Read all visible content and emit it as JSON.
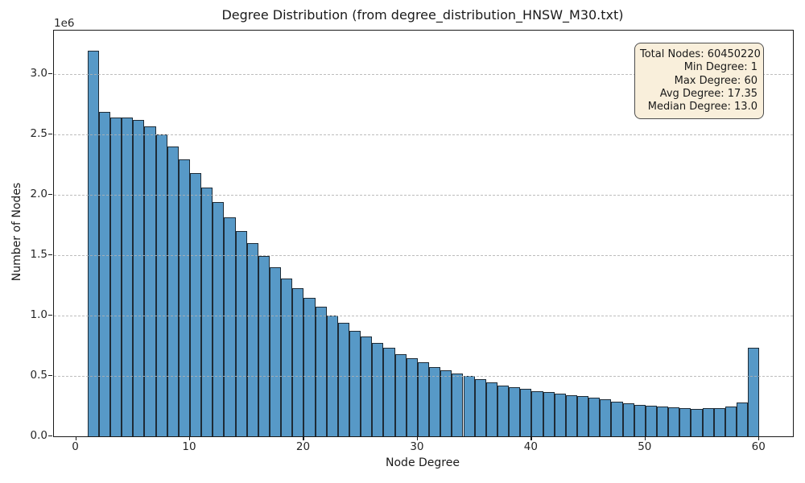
{
  "figure": {
    "title": "Degree Distribution (from degree_distribution_HNSW_M30.txt)",
    "xlabel": "Node Degree",
    "ylabel": "Number of Nodes",
    "y_offset_text": "1e6"
  },
  "stats_box": {
    "lines": [
      "Total Nodes: 60450220",
      "Min Degree: 1",
      "Max Degree: 60",
      "Avg Degree: 17.35",
      "Median Degree: 13.0"
    ]
  },
  "chart_data": {
    "type": "bar",
    "title": "Degree Distribution (from degree_distribution_HNSW_M30.txt)",
    "xlabel": "Node Degree",
    "ylabel": "Number of Nodes",
    "bin_width": 1,
    "bin_start_degrees": [
      1,
      2,
      3,
      4,
      5,
      6,
      7,
      8,
      9,
      10,
      11,
      12,
      13,
      14,
      15,
      16,
      17,
      18,
      19,
      20,
      21,
      22,
      23,
      24,
      25,
      26,
      27,
      28,
      29,
      30,
      31,
      32,
      33,
      34,
      35,
      36,
      37,
      38,
      39,
      40,
      41,
      42,
      43,
      44,
      45,
      46,
      47,
      48,
      49,
      50,
      51,
      52,
      53,
      54,
      55,
      56,
      57,
      58,
      59
    ],
    "counts": [
      3190000,
      2685000,
      2640000,
      2640000,
      2620000,
      2565000,
      2500000,
      2400000,
      2290000,
      2175000,
      2060000,
      1940000,
      1815000,
      1700000,
      1600000,
      1495000,
      1400000,
      1305000,
      1225000,
      1145000,
      1070000,
      1000000,
      940000,
      870000,
      825000,
      775000,
      730000,
      680000,
      645000,
      610000,
      575000,
      545000,
      520000,
      500000,
      472000,
      448000,
      420000,
      405000,
      390000,
      375000,
      365000,
      355000,
      340000,
      330000,
      320000,
      308000,
      285000,
      270000,
      260000,
      255000,
      245000,
      237000,
      235000,
      228000,
      233000,
      235000,
      246000,
      278000,
      732000
    ],
    "xlim": [
      -1.95,
      62.95
    ],
    "ylim": [
      0,
      3357000
    ],
    "xticks": [
      0,
      10,
      20,
      30,
      40,
      50,
      60
    ],
    "x_tick_labels": [
      "0",
      "10",
      "20",
      "30",
      "40",
      "50",
      "60"
    ],
    "yticks": [
      0,
      500000,
      1000000,
      1500000,
      2000000,
      2500000,
      3000000
    ],
    "y_tick_labels": [
      "0.0",
      "0.5",
      "1.0",
      "1.5",
      "2.0",
      "2.5",
      "3.0"
    ],
    "grid": {
      "axis": "y",
      "style": "dashed",
      "drawn_over_bars": true
    },
    "legend_position": "upper right",
    "colors": {
      "bar_fill": "#5799c7",
      "bar_edge": "#1e2b36",
      "grid": "#b2b2b2",
      "stats_box_bg": "#f9efdb",
      "stats_box_border": "#4d4d4d",
      "spine": "#1a1a1a",
      "text": "#262626"
    }
  }
}
